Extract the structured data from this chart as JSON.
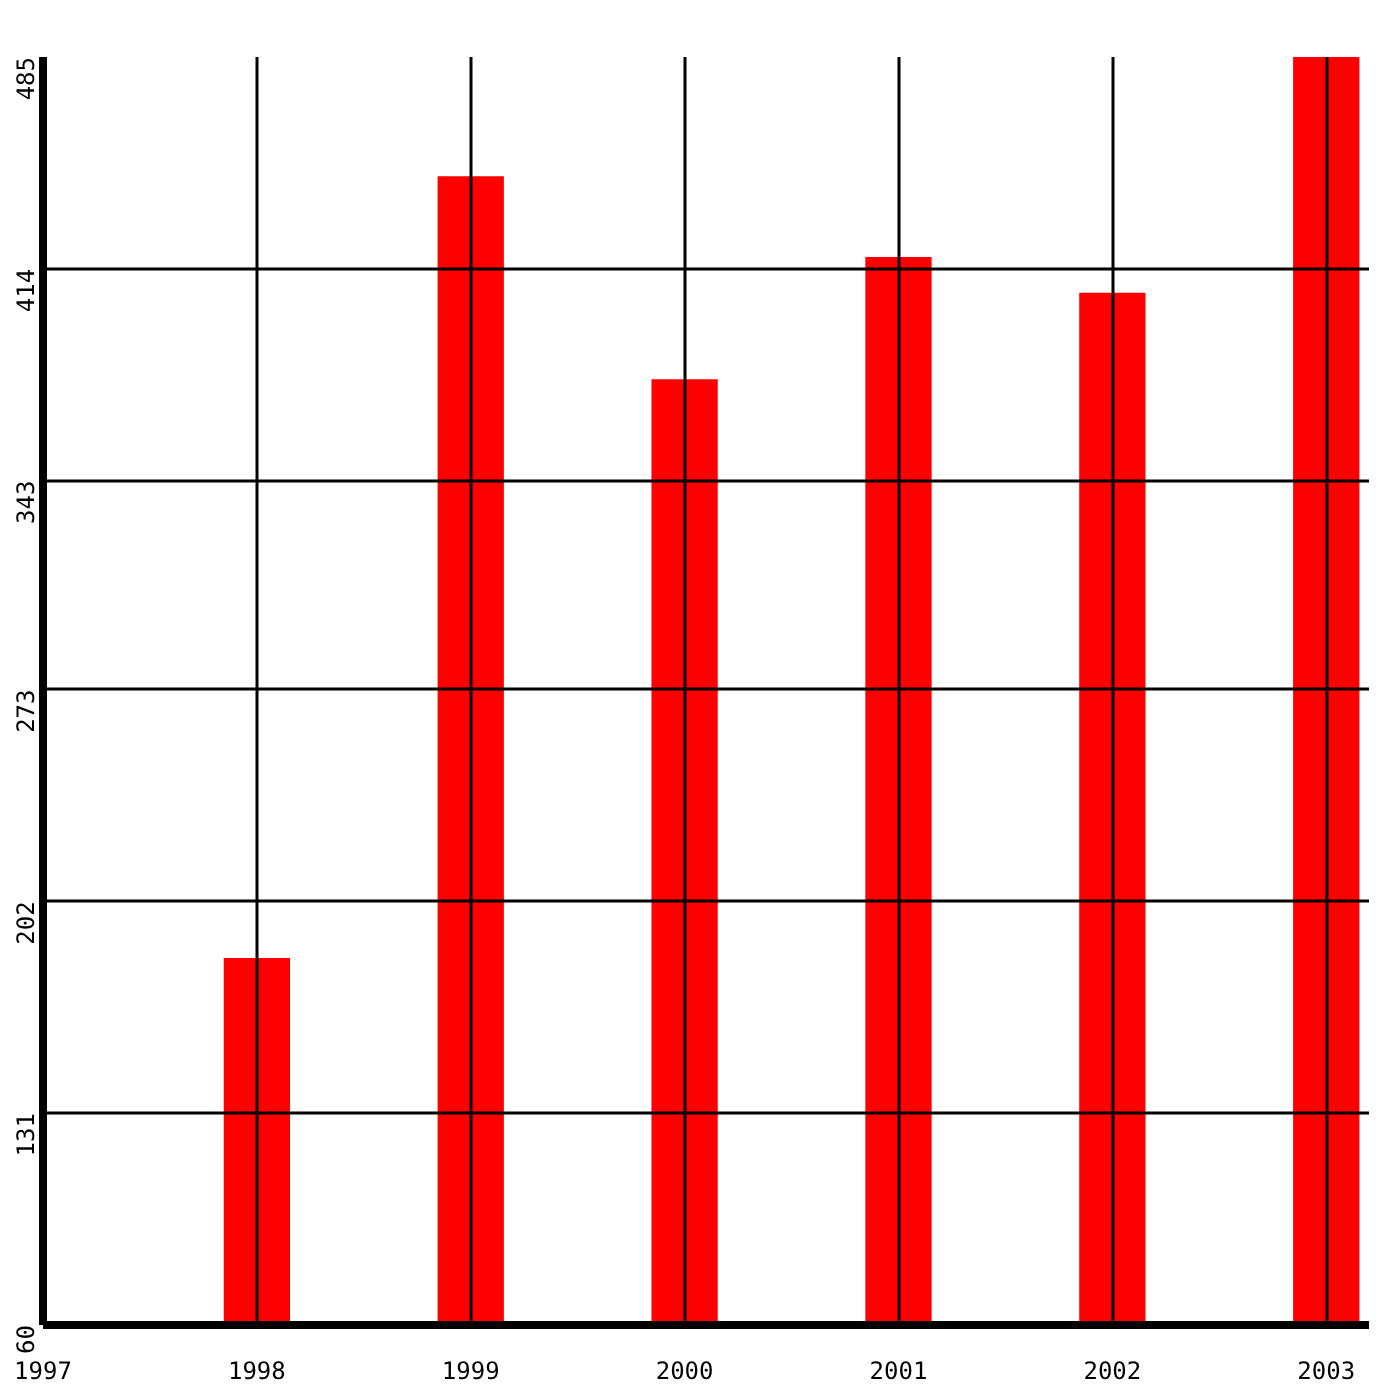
{
  "chart_data": {
    "type": "bar",
    "x": [
      1998,
      1999,
      2000,
      2001,
      2002,
      2003
    ],
    "values": [
      183,
      445,
      377,
      418,
      406,
      485
    ],
    "color": "#ff0000",
    "xlim": [
      1997,
      2003.2
    ],
    "xticks": [
      1997,
      1998,
      1999,
      2000,
      2001,
      2002,
      2003
    ],
    "ylim": [
      60,
      485
    ],
    "yticks": [
      60,
      131,
      202,
      273,
      343,
      414,
      485
    ],
    "grid": true
  }
}
